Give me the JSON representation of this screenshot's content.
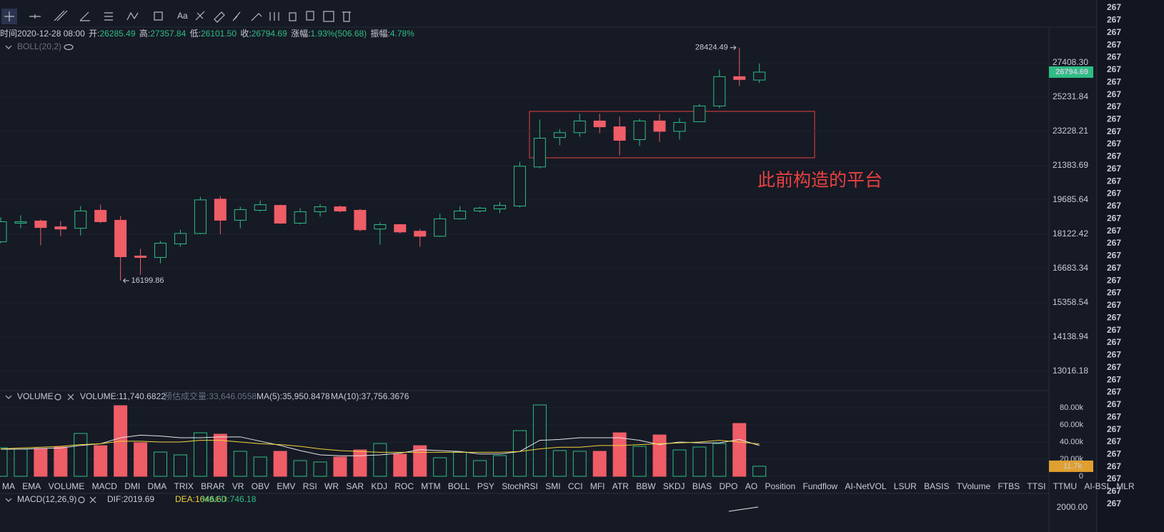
{
  "toolbar": {
    "font_label": "Aa"
  },
  "header": [
    {
      "label": "时间",
      "value": "2020-12-28 08:00"
    },
    {
      "label": "开:",
      "value": "26285.49"
    },
    {
      "label": "高:",
      "value": "27357.84"
    },
    {
      "label": "低:",
      "value": "26101.50"
    },
    {
      "label": "收:",
      "value": "26794.69"
    },
    {
      "label": "涨幅:",
      "value": "1.93%(506.68)"
    },
    {
      "label": "振幅:",
      "value": "4.78%"
    }
  ],
  "chart_data": [
    {
      "type": "candlestick",
      "indicator": "BOLL(20,2)",
      "annotation": "此前构造的平台",
      "log": true,
      "grid": true,
      "up_color": "#2ebd85",
      "down_color": "#ef5d67",
      "ylim": [
        12467,
        29763
      ],
      "yticks": [
        {
          "value": 27408.3,
          "label": "27408.30"
        },
        25231.84,
        23228.21,
        21383.69,
        19685.64,
        18122.42,
        16683.34,
        15358.54,
        14138.94,
        13016.18
      ],
      "open": [
        17792,
        18610,
        18708,
        18447,
        18382,
        19197,
        18741,
        17192,
        17132,
        17702,
        18153,
        19721,
        18741,
        19197,
        19425,
        18610,
        19132,
        19360,
        19197,
        18350,
        18545,
        18252,
        18032,
        18806,
        19164,
        19262,
        19393,
        21313,
        22882,
        23151,
        23814,
        23480,
        22767,
        23814,
        23228,
        23772,
        24690,
        26502,
        26285.49
      ],
      "high": [
        18871,
        18969,
        18773,
        18708,
        19393,
        19458,
        18936,
        17492,
        17822,
        18317,
        19828,
        19863,
        19360,
        19653,
        19458,
        19295,
        19490,
        19425,
        19262,
        18643,
        18578,
        18350,
        19034,
        19393,
        19360,
        19588,
        21577,
        23895,
        23353,
        24231,
        24231,
        24064,
        23939,
        24231,
        23981,
        24815,
        26955,
        28424.49,
        27357.84
      ],
      "low": [
        17732,
        18382,
        17642,
        18032,
        18062,
        18610,
        16199.86,
        16435,
        16892,
        17582,
        18122,
        18122,
        18382,
        19132,
        18578,
        18545,
        18904,
        19099,
        18252,
        17672,
        18153,
        17582,
        18002,
        18773,
        19099,
        19067,
        19327,
        21242,
        22460,
        22921,
        23113,
        21922,
        22422,
        22652,
        22767,
        23772,
        24565,
        25913,
        26101.5
      ],
      "close": [
        18675,
        18675,
        18415,
        18350,
        19164,
        18675,
        17162,
        17132,
        17732,
        18153,
        19686,
        18741,
        19230,
        19458,
        18610,
        19132,
        19360,
        19164,
        18317,
        18545,
        18219,
        18032,
        18806,
        19164,
        19295,
        19425,
        21349,
        22844,
        23151,
        23814,
        23480,
        22729,
        23814,
        23228,
        23730,
        24690,
        26502,
        26321,
        26794.69
      ]
    },
    {
      "type": "bar",
      "title": "VOLUME",
      "readout": "VOLUME:11,740.6822",
      "estimate": "预估成交量:33,646.0558",
      "current_label": "11.7k",
      "ylim": [
        0,
        89200
      ],
      "yticks": [
        {
          "value": 80000,
          "label": "80.00k"
        },
        {
          "value": 60000,
          "label": "60.00k"
        },
        {
          "value": 40000,
          "label": "40.00k"
        },
        {
          "value": 20000,
          "label": "20.00k"
        },
        0
      ],
      "values": [
        33300,
        31700,
        32500,
        34200,
        50000,
        35800,
        82500,
        39200,
        28300,
        25000,
        50800,
        49200,
        29200,
        22500,
        29200,
        18300,
        16700,
        22500,
        30800,
        38300,
        25800,
        35800,
        21700,
        28300,
        18300,
        24200,
        53300,
        83300,
        30000,
        29200,
        29200,
        50800,
        35000,
        48300,
        30800,
        34200,
        38300,
        61700,
        11740.6822
      ],
      "series": [
        {
          "label": "MA(5):35,950.8478",
          "color": "#e6e6e6",
          "values": [
            31700,
            31700,
            32500,
            33000,
            36000,
            38000,
            45000,
            48000,
            47000,
            45000,
            45000,
            46000,
            46000,
            41000,
            36000,
            30000,
            25000,
            24000,
            24000,
            25000,
            27000,
            31000,
            30000,
            29000,
            26000,
            26000,
            29000,
            42000,
            43000,
            45000,
            45000,
            45000,
            42000,
            37000,
            40000,
            39000,
            39000,
            43000,
            35950.8478
          ]
        },
        {
          "label": "MA(10):37,756.3676",
          "color": "#f0d43c",
          "values": [
            32000,
            33000,
            34000,
            35000,
            37000,
            38000,
            41000,
            41000,
            40000,
            40000,
            42000,
            42000,
            40000,
            38000,
            37000,
            35000,
            32000,
            30000,
            29000,
            28000,
            28000,
            28000,
            28000,
            28000,
            28000,
            28000,
            29000,
            32000,
            34000,
            34000,
            36000,
            36000,
            37000,
            38000,
            39000,
            40000,
            42000,
            40000,
            37756.3676
          ]
        }
      ]
    }
  ],
  "indicator_tabs": {
    "active": "VOLUME",
    "muted": "MACD",
    "items": [
      "MA",
      "EMA",
      "VOLUME",
      "MACD",
      "DMI",
      "DMA",
      "TRIX",
      "BRAR",
      "VR",
      "OBV",
      "EMV",
      "RSI",
      "WR",
      "SAR",
      "KDJ",
      "ROC",
      "MTM",
      "BOLL",
      "PSY",
      "StochRSI",
      "SMI",
      "CCI",
      "MFI",
      "ATR",
      "BBW",
      "SKDJ",
      "BIAS",
      "DPO",
      "AO",
      "Position",
      "Fundflow",
      "AI-NetVOL",
      "LSUR",
      "BASIS",
      "TVolume",
      "FTBS",
      "TTSI",
      "TTMU",
      "AI-BSI",
      "MLR"
    ]
  },
  "macd": {
    "title": "MACD(12,26,9)",
    "dif": "DIF:2019.69",
    "dea": "DEA:1646.60",
    "macd": "MACD:746.18",
    "tick": "2000.00"
  },
  "sidebar": {
    "rows": [
      {
        "text": "267",
        "trend": "down"
      },
      {
        "text": "267",
        "trend": "down"
      },
      {
        "text": "267",
        "trend": "down"
      },
      {
        "text": "267",
        "trend": "down"
      },
      {
        "text": "267",
        "trend": "up"
      },
      {
        "text": "267",
        "trend": "down"
      },
      {
        "text": "267",
        "trend": "up"
      },
      {
        "text": "267",
        "trend": "down"
      },
      {
        "text": "267",
        "trend": "up"
      },
      {
        "text": "267",
        "trend": "up"
      },
      {
        "text": "267",
        "trend": "up"
      },
      {
        "text": "267",
        "trend": "up"
      },
      {
        "text": "267",
        "trend": "up"
      },
      {
        "text": "267",
        "trend": "up"
      },
      {
        "text": "267",
        "trend": "up"
      },
      {
        "text": "267",
        "trend": "up"
      },
      {
        "text": "267",
        "trend": "up"
      },
      {
        "text": "267",
        "trend": "down"
      },
      {
        "text": "267",
        "trend": "up"
      },
      {
        "text": "267",
        "trend": "down"
      },
      {
        "text": "267",
        "trend": "up"
      },
      {
        "text": "267",
        "trend": "down"
      },
      {
        "text": "267",
        "trend": "up"
      },
      {
        "text": "267",
        "trend": "down"
      },
      {
        "text": "267",
        "trend": "down"
      },
      {
        "text": "267",
        "trend": "up"
      },
      {
        "text": "267",
        "trend": "up"
      },
      {
        "text": "267",
        "trend": "up"
      },
      {
        "text": "267",
        "trend": "up"
      },
      {
        "text": "267",
        "trend": "up"
      },
      {
        "text": "267",
        "trend": "up"
      },
      {
        "text": "267",
        "trend": "up"
      },
      {
        "text": "267",
        "trend": "up"
      },
      {
        "text": "267",
        "trend": "up"
      },
      {
        "text": "267",
        "trend": "up"
      },
      {
        "text": "267",
        "trend": "up"
      },
      {
        "text": "267",
        "trend": "up"
      },
      {
        "text": "267",
        "trend": "up"
      },
      {
        "text": "267",
        "trend": "up"
      },
      {
        "text": "267",
        "trend": "up"
      },
      {
        "text": "267",
        "trend": "down"
      }
    ]
  }
}
